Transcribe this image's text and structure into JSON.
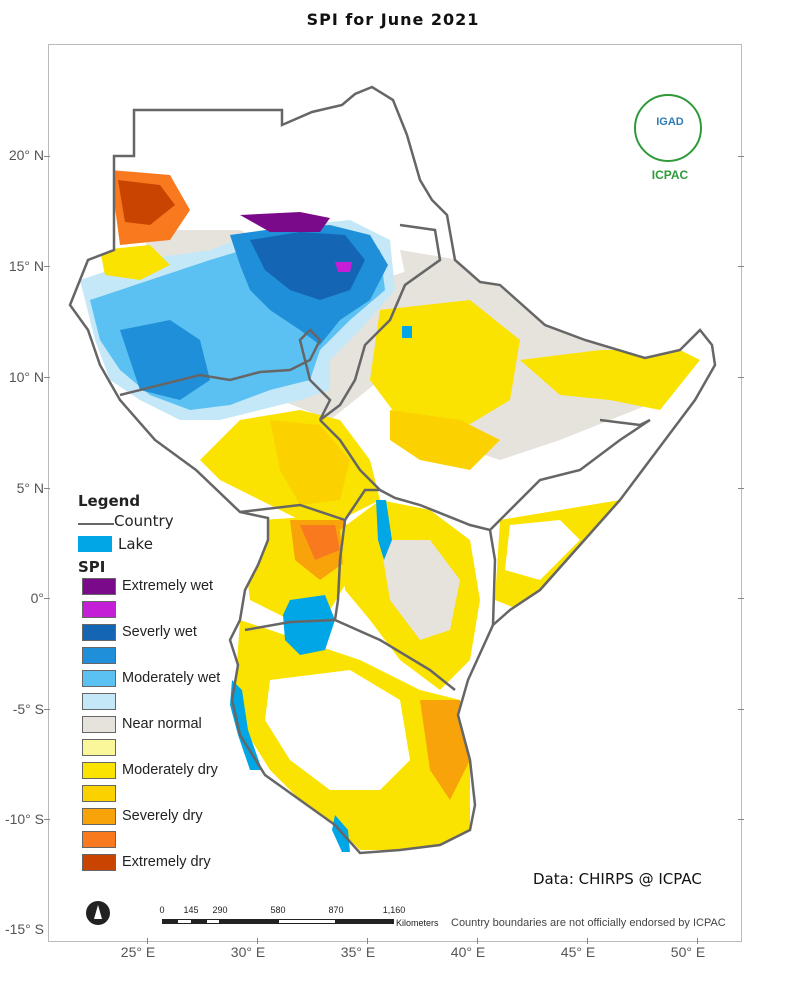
{
  "title": "SPI  for  June 2021",
  "axes": {
    "lat_labels": [
      "20° N",
      "15° N",
      "10° N",
      "5° N",
      "0°",
      "-5° S",
      "-10° S",
      "-15° S"
    ],
    "lon_labels": [
      "25° E",
      "30° E",
      "35° E",
      "40° E",
      "45° E",
      "50° E"
    ]
  },
  "legend": {
    "title": "Legend",
    "country_label": "Country",
    "lake_label": "Lake",
    "lake_color": "#00a6e6",
    "spi_title": "SPI",
    "classes": [
      {
        "label": "Extremely wet",
        "color": "#7b0a8a"
      },
      {
        "label": "",
        "color": "#c41ed6"
      },
      {
        "label": "Severly wet",
        "color": "#1565b5"
      },
      {
        "label": "",
        "color": "#1e8fd8"
      },
      {
        "label": "Moderately wet",
        "color": "#5bc0f2"
      },
      {
        "label": "",
        "color": "#c4e8f8"
      },
      {
        "label": "Near normal",
        "color": "#e6e2dc"
      },
      {
        "label": "",
        "color": "#faf79b"
      },
      {
        "label": "Moderately dry",
        "color": "#fae300"
      },
      {
        "label": "",
        "color": "#fbd200"
      },
      {
        "label": "Severely dry",
        "color": "#f8a30a"
      },
      {
        "label": "",
        "color": "#f97a1e"
      },
      {
        "label": "Extremely dry",
        "color": "#c84400"
      }
    ]
  },
  "credit": "Data: CHIRPS @ ICPAC",
  "disclaimer": "Country boundaries are not officially endorsed by ICPAC",
  "logo": {
    "text": "IGAD",
    "name": "ICPAC"
  },
  "scalebar": {
    "labels": [
      "0",
      "145",
      "290",
      "580",
      "870",
      "1,160"
    ],
    "units": "Kilometers"
  }
}
